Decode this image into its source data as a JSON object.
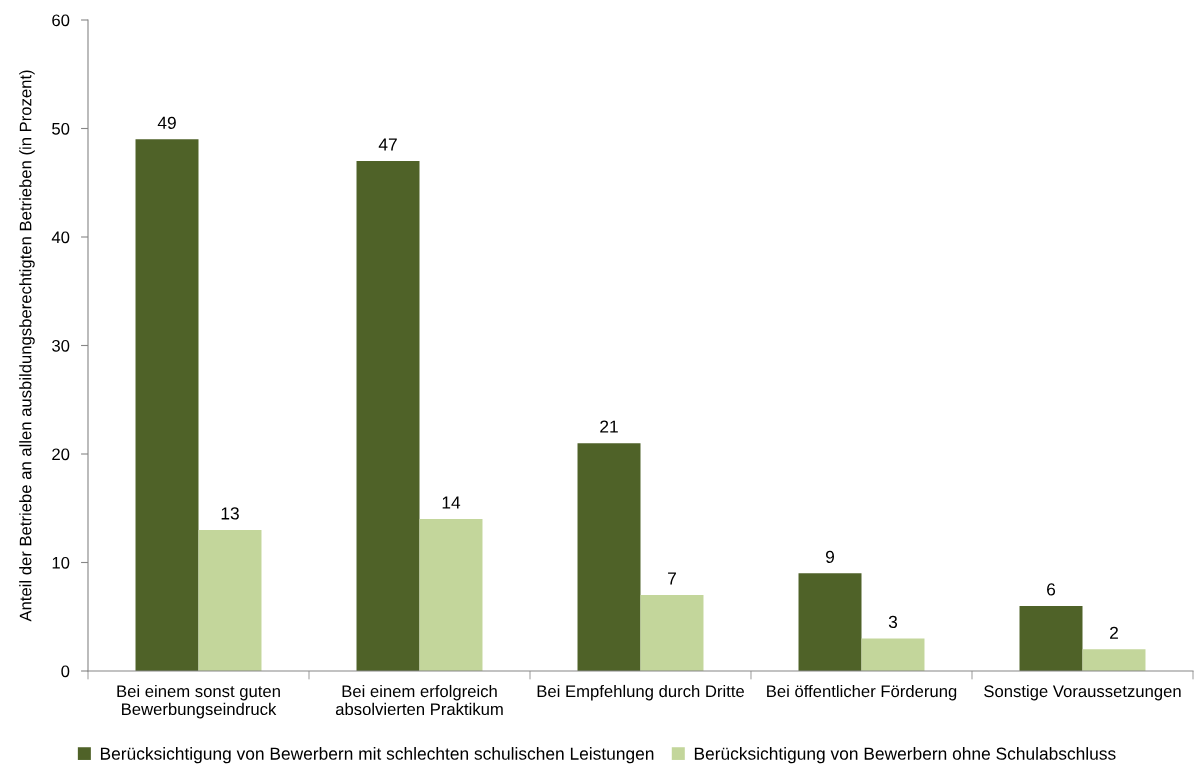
{
  "chart_data": {
    "type": "bar",
    "ylabel": "Anteil der Betriebe an allen ausbildungsberechtigten Betrieben (in Prozent)",
    "categories": [
      "Bei einem sonst guten\nBewerbungseindruck",
      "Bei einem erfolgreich\nabsolvierten Praktikum",
      "Bei Empfehlung durch Dritte",
      "Bei öffentlicher Förderung",
      "Sonstige Voraussetzungen"
    ],
    "series": [
      {
        "name": "Berücksichtigung von Bewerbern mit schlechten schulischen Leistungen",
        "color": "#4f6228",
        "values": [
          49,
          47,
          21,
          9,
          6
        ]
      },
      {
        "name": "Berücksichtigung von Bewerbern ohne Schulabschluss",
        "color": "#c3d69b",
        "values": [
          13,
          14,
          7,
          3,
          2
        ]
      }
    ],
    "ylim": [
      0,
      60
    ],
    "yticks": [
      0,
      10,
      20,
      30,
      40,
      50,
      60
    ],
    "data_labels": true,
    "grid": false,
    "legend": "bottom"
  }
}
